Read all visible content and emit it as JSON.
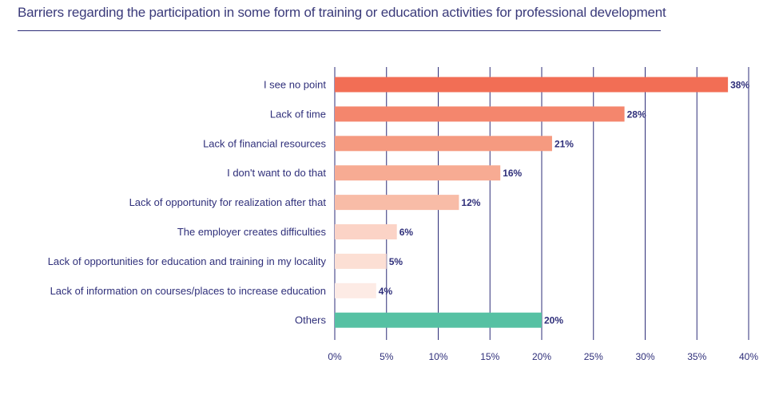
{
  "chart_data": {
    "type": "bar",
    "orientation": "horizontal",
    "title": "Barriers regarding the participation in some form of training or education activities for professional development",
    "categories": [
      "I see no point",
      "Lack of time",
      "Lack of financial resources",
      "I don't want to do that",
      "Lack of opportunity for realization after that",
      "The employer creates difficulties",
      "Lack of opportunities for education and training in my locality",
      "Lack of information on courses/places to increase education",
      "Others"
    ],
    "values": [
      38,
      28,
      21,
      16,
      12,
      6,
      5,
      4,
      20
    ],
    "value_labels": [
      "38%",
      "28%",
      "21%",
      "16%",
      "12%",
      "6%",
      "5%",
      "4%",
      "20%"
    ],
    "xlim": [
      0,
      40
    ],
    "xticks": [
      0,
      5,
      10,
      15,
      20,
      25,
      30,
      35,
      40
    ],
    "xtick_labels": [
      "0%",
      "5%",
      "10%",
      "15%",
      "20%",
      "25%",
      "30%",
      "35%",
      "40%"
    ],
    "grid": "vertical",
    "colors": [
      "#f26e55",
      "#f4866d",
      "#f59a80",
      "#f7ab93",
      "#f8bca7",
      "#fbd3c6",
      "#fcdfd4",
      "#fdebe5",
      "#56c1a3"
    ],
    "gridline_color": "#2e2e78",
    "text_color": "#2f2f7a"
  }
}
